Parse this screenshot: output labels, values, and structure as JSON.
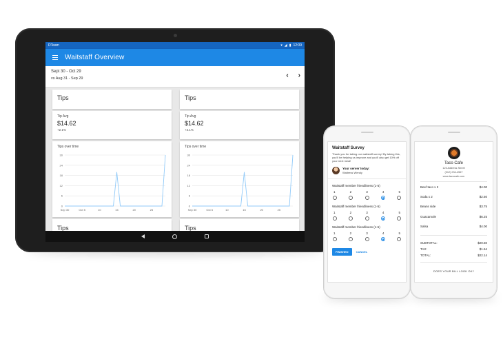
{
  "colors": {
    "primary": "#1e88e5",
    "status_bar": "#1565c0",
    "chart_line": "#90caf9"
  },
  "tablet": {
    "status": {
      "left": "DTeam",
      "time": "12:09",
      "icons": [
        "wifi-icon",
        "signal-icon",
        "battery-icon"
      ]
    },
    "app_title": "Waitstaff Overview",
    "date_range": "Sept 30 - Oct 29",
    "compare_range": "vs Aug 31 - Sep 29",
    "nav": {
      "prev": "‹",
      "next": "›"
    },
    "cards": [
      {
        "title": "Tips",
        "kpi_label": "Tip Avg",
        "kpi_value": "$14.62",
        "kpi_delta": "+2.1%",
        "chart_title": "Tips over time",
        "next_title": "Tips"
      },
      {
        "title": "Tips",
        "kpi_label": "Tip Avg",
        "kpi_value": "$14.62",
        "kpi_delta": "+2.1%",
        "chart_title": "Tips over time",
        "next_title": "Tips"
      }
    ],
    "system_nav": [
      "back-icon",
      "home-icon",
      "recents-icon"
    ]
  },
  "chart_data": [
    {
      "type": "line",
      "title": "Tips over time",
      "x": [
        "Sep 30",
        "Oct 1",
        "Oct 2",
        "Oct 3",
        "Oct 4",
        "Oct 5",
        "Oct 6",
        "Oct 7",
        "Oct 8",
        "Oct 9",
        "Oct 10",
        "Oct 11",
        "Oct 12",
        "Oct 13",
        "Oct 14",
        "Oct 15",
        "Oct 16",
        "Oct 17",
        "Oct 18",
        "Oct 19",
        "Oct 20",
        "Oct 21",
        "Oct 22",
        "Oct 23",
        "Oct 24",
        "Oct 25",
        "Oct 26",
        "Oct 27",
        "Oct 28",
        "Oct 29"
      ],
      "series": [
        {
          "values": [
            0,
            0,
            0,
            0,
            0,
            0,
            0,
            0,
            0,
            0,
            0,
            0,
            0,
            0,
            0,
            20,
            0,
            0,
            0,
            0,
            0,
            0,
            0,
            0,
            0,
            0,
            0,
            0,
            0,
            30
          ]
        }
      ],
      "xticks": [
        "Sep 30",
        "Oct 5",
        "10",
        "15",
        "20",
        "25"
      ],
      "yticks": [
        "0",
        "6",
        "12",
        "18",
        "24",
        "30"
      ],
      "ylim": [
        0,
        30
      ]
    },
    {
      "type": "line",
      "title": "Tips over time",
      "x": [
        "Sep 30",
        "Oct 1",
        "Oct 2",
        "Oct 3",
        "Oct 4",
        "Oct 5",
        "Oct 6",
        "Oct 7",
        "Oct 8",
        "Oct 9",
        "Oct 10",
        "Oct 11",
        "Oct 12",
        "Oct 13",
        "Oct 14",
        "Oct 15",
        "Oct 16",
        "Oct 17",
        "Oct 18",
        "Oct 19",
        "Oct 20",
        "Oct 21",
        "Oct 22",
        "Oct 23",
        "Oct 24",
        "Oct 25",
        "Oct 26",
        "Oct 27",
        "Oct 28",
        "Oct 29"
      ],
      "series": [
        {
          "values": [
            0,
            0,
            0,
            0,
            0,
            0,
            0,
            0,
            0,
            0,
            0,
            0,
            0,
            0,
            0,
            20,
            0,
            0,
            0,
            0,
            0,
            0,
            0,
            0,
            0,
            0,
            0,
            0,
            0,
            30
          ]
        }
      ],
      "xticks": [
        "Sep 30",
        "Oct 5",
        "10",
        "15",
        "20",
        "25"
      ],
      "yticks": [
        "0",
        "6",
        "12",
        "18",
        "24",
        "30"
      ],
      "ylim": [
        0,
        30
      ]
    }
  ],
  "survey": {
    "title": "Waitstaff Survey",
    "intro": "Thank you for taking our waitstaff survey! By taking this, you'll be helping us improve and you'll also get 10% off your next meal!",
    "server_label": "Your server today:",
    "server_name": "Waitress Wendy",
    "questions": [
      {
        "label": "Waitstaff member friendliness (1-5)",
        "options": [
          "1",
          "2",
          "3",
          "4",
          "5"
        ],
        "selected": 4
      },
      {
        "label": "Waitstaff member friendliness (1-5)",
        "options": [
          "1",
          "2",
          "3",
          "4",
          "5"
        ],
        "selected": 4
      },
      {
        "label": "Waitstaff member friendliness (1-5)",
        "options": [
          "1",
          "2",
          "3",
          "4",
          "5"
        ],
        "selected": 4
      }
    ],
    "finish_label": "FINISHED",
    "cancel_label": "CANCEL"
  },
  "receipt": {
    "name": "Taco Cafe",
    "address": "123 Address Street",
    "phone": "(312) 234-4567",
    "website": "www.tacocafe.com",
    "items": [
      {
        "name": "Beef taco x 2",
        "price": "$4.00"
      },
      {
        "name": "Soda x 2",
        "price": "$2.50"
      },
      {
        "name": "Beans side",
        "price": "$3.75"
      },
      {
        "name": "Guacamole",
        "price": "$6.25"
      },
      {
        "name": "Salsa",
        "price": "$4.00"
      }
    ],
    "subtotal_label": "SUBTOTAL:",
    "subtotal": "$20.50",
    "tax_label": "TAX:",
    "tax": "$1.64",
    "total_label": "TOTAL:",
    "total": "$22.14",
    "question": "DOES YOUR BILL LOOK OK?"
  }
}
